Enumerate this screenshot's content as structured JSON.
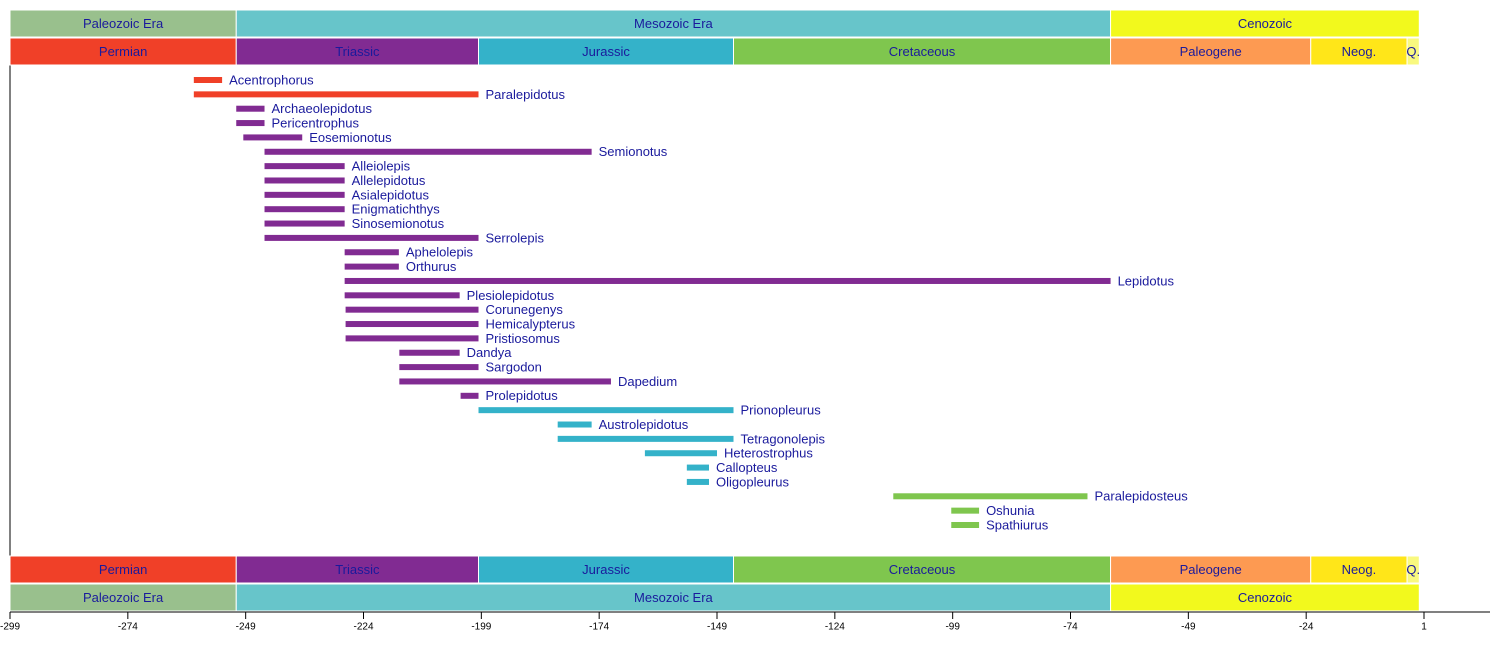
{
  "chart_data": {
    "type": "timeline",
    "xlim": [
      -299,
      15
    ],
    "xticks": [
      -299,
      -274,
      -249,
      -224,
      -199,
      -174,
      -149,
      -124,
      -99,
      -74,
      -49,
      -24,
      1
    ],
    "eras": [
      {
        "name": "Paleozoic Era",
        "start": -299,
        "end": -251,
        "color": "#99c08d"
      },
      {
        "name": "Mesozoic Era",
        "start": -251,
        "end": -65.5,
        "color": "#67c5ca"
      },
      {
        "name": "Cenozoic",
        "start": -65.5,
        "end": 0,
        "color": "#f2f91d"
      }
    ],
    "periods": [
      {
        "name": "Permian",
        "start": -299,
        "end": -251,
        "color": "#f04028"
      },
      {
        "name": "Triassic",
        "start": -251,
        "end": -199.6,
        "color": "#812b92"
      },
      {
        "name": "Jurassic",
        "start": -199.6,
        "end": -145.5,
        "color": "#34b2c9"
      },
      {
        "name": "Cretaceous",
        "start": -145.5,
        "end": -65.5,
        "color": "#7fc64e"
      },
      {
        "name": "Paleogene",
        "start": -65.5,
        "end": -23.03,
        "color": "#fd9a52"
      },
      {
        "name": "Neog.",
        "start": -23.03,
        "end": -2.588,
        "color": "#ffe619"
      },
      {
        "name": "Q.",
        "start": -2.588,
        "end": 0,
        "color": "#f9f97f"
      }
    ],
    "taxa": [
      {
        "name": "Acentrophorus",
        "start": -260,
        "end": -254,
        "color": "#f04028"
      },
      {
        "name": "Paralepidotus",
        "start": -260,
        "end": -199.6,
        "color": "#f04028"
      },
      {
        "name": "Archaeolepidotus",
        "start": -251,
        "end": -245,
        "color": "#812b92"
      },
      {
        "name": "Pericentrophus",
        "start": -251,
        "end": -245,
        "color": "#812b92"
      },
      {
        "name": "Eosemionotus",
        "start": -249.5,
        "end": -237,
        "color": "#812b92"
      },
      {
        "name": "Semionotus",
        "start": -245,
        "end": -175.6,
        "color": "#812b92"
      },
      {
        "name": "Alleiolepis",
        "start": -245,
        "end": -228,
        "color": "#812b92"
      },
      {
        "name": "Allelepidotus",
        "start": -245,
        "end": -228,
        "color": "#812b92"
      },
      {
        "name": "Asialepidotus",
        "start": -245,
        "end": -228,
        "color": "#812b92"
      },
      {
        "name": "Enigmatichthys",
        "start": -245,
        "end": -228,
        "color": "#812b92"
      },
      {
        "name": "Sinosemionotus",
        "start": -245,
        "end": -228,
        "color": "#812b92"
      },
      {
        "name": "Serrolepis",
        "start": -245,
        "end": -199.6,
        "color": "#812b92"
      },
      {
        "name": "Aphelolepis",
        "start": -228,
        "end": -216.5,
        "color": "#812b92"
      },
      {
        "name": "Orthurus",
        "start": -228,
        "end": -216.5,
        "color": "#812b92"
      },
      {
        "name": "Lepidotus",
        "start": -228,
        "end": -65.5,
        "color": "#812b92"
      },
      {
        "name": "Plesiolepidotus",
        "start": -228,
        "end": -203.6,
        "color": "#812b92"
      },
      {
        "name": "Corunegenys",
        "start": -227.8,
        "end": -199.6,
        "color": "#812b92"
      },
      {
        "name": "Hemicalypterus",
        "start": -227.8,
        "end": -199.6,
        "color": "#812b92"
      },
      {
        "name": "Pristiosomus",
        "start": -227.8,
        "end": -199.6,
        "color": "#812b92"
      },
      {
        "name": "Dandya",
        "start": -216.4,
        "end": -203.6,
        "color": "#812b92"
      },
      {
        "name": "Sargodon",
        "start": -216.4,
        "end": -199.6,
        "color": "#812b92"
      },
      {
        "name": "Dapedium",
        "start": -216.4,
        "end": -171.5,
        "color": "#812b92"
      },
      {
        "name": "Prolepidotus",
        "start": -203.4,
        "end": -199.6,
        "color": "#812b92"
      },
      {
        "name": "Prionopleurus",
        "start": -199.6,
        "end": -145.5,
        "color": "#34b2c9"
      },
      {
        "name": "Austrolepidotus",
        "start": -182.8,
        "end": -175.6,
        "color": "#34b2c9"
      },
      {
        "name": "Tetragonolepis",
        "start": -182.8,
        "end": -145.5,
        "color": "#34b2c9"
      },
      {
        "name": "Heterostrophus",
        "start": -164.3,
        "end": -149,
        "color": "#34b2c9"
      },
      {
        "name": "Callopteus",
        "start": -155.4,
        "end": -150.7,
        "color": "#34b2c9"
      },
      {
        "name": "Oligopleurus",
        "start": -155.4,
        "end": -150.7,
        "color": "#34b2c9"
      },
      {
        "name": "Paralepidosteus",
        "start": -111.6,
        "end": -70.4,
        "color": "#7fc64e"
      },
      {
        "name": "Oshunia",
        "start": -99.3,
        "end": -93.4,
        "color": "#7fc64e"
      },
      {
        "name": "Spathiurus",
        "start": -99.3,
        "end": -93.4,
        "color": "#7fc64e"
      }
    ]
  }
}
